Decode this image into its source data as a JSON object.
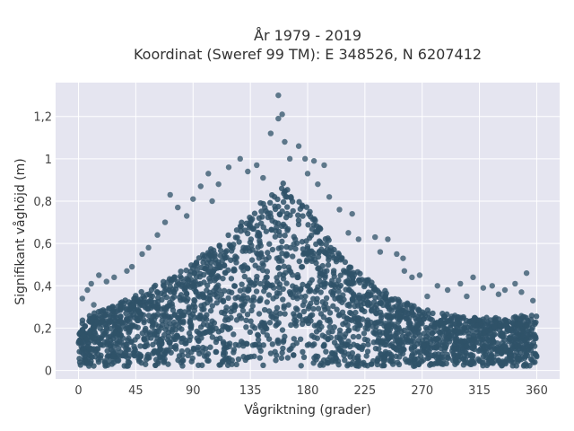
{
  "chart_data": {
    "type": "scatter",
    "title_lines": [
      "År 1979 - 2019",
      "Koordinat (Sweref 99 TM): E 348526, N 6207412"
    ],
    "xlabel": "Vågriktning (grader)",
    "ylabel": "Signifikant våghöjd (m)",
    "xlim": [
      -18,
      378
    ],
    "ylim": [
      -0.04,
      1.36
    ],
    "x_ticks": [
      0,
      45,
      90,
      135,
      180,
      225,
      270,
      315,
      360
    ],
    "y_ticks": [
      0,
      0.2,
      0.4,
      0.6,
      0.8,
      1,
      1.2
    ],
    "y_tick_labels": [
      "0",
      "0,2",
      "0,4",
      "0,6",
      "0,8",
      "1",
      "1,2"
    ],
    "grid": true,
    "marker_color": "#2f5268",
    "background_color": "#e5e5f0",
    "envelope": {
      "x": [
        0,
        20,
        45,
        70,
        90,
        110,
        130,
        150,
        160,
        175,
        190,
        210,
        225,
        245,
        265,
        285,
        310,
        335,
        360
      ],
      "upper": [
        0.24,
        0.29,
        0.36,
        0.43,
        0.51,
        0.61,
        0.72,
        0.83,
        0.89,
        0.82,
        0.67,
        0.52,
        0.44,
        0.36,
        0.3,
        0.27,
        0.25,
        0.25,
        0.27
      ]
    },
    "outliers": [
      {
        "x": 157,
        "y": 1.3
      },
      {
        "x": 160,
        "y": 1.21
      },
      {
        "x": 157,
        "y": 1.19
      },
      {
        "x": 151,
        "y": 1.12
      },
      {
        "x": 162,
        "y": 1.08
      },
      {
        "x": 173,
        "y": 1.06
      },
      {
        "x": 127,
        "y": 1.0
      },
      {
        "x": 178,
        "y": 1.0
      },
      {
        "x": 185,
        "y": 0.99
      },
      {
        "x": 193,
        "y": 0.97
      },
      {
        "x": 118,
        "y": 0.96
      },
      {
        "x": 102,
        "y": 0.93
      },
      {
        "x": 133,
        "y": 0.94
      },
      {
        "x": 96,
        "y": 0.87
      },
      {
        "x": 72,
        "y": 0.83
      },
      {
        "x": 90,
        "y": 0.81
      },
      {
        "x": 85,
        "y": 0.73
      },
      {
        "x": 78,
        "y": 0.77
      },
      {
        "x": 68,
        "y": 0.7
      },
      {
        "x": 205,
        "y": 0.76
      },
      {
        "x": 215,
        "y": 0.74
      },
      {
        "x": 197,
        "y": 0.82
      },
      {
        "x": 212,
        "y": 0.65
      },
      {
        "x": 220,
        "y": 0.62
      },
      {
        "x": 233,
        "y": 0.63
      },
      {
        "x": 243,
        "y": 0.62
      },
      {
        "x": 250,
        "y": 0.55
      },
      {
        "x": 255,
        "y": 0.53
      },
      {
        "x": 62,
        "y": 0.64
      },
      {
        "x": 55,
        "y": 0.58
      },
      {
        "x": 50,
        "y": 0.55
      },
      {
        "x": 42,
        "y": 0.49
      },
      {
        "x": 38,
        "y": 0.47
      },
      {
        "x": 28,
        "y": 0.44
      },
      {
        "x": 22,
        "y": 0.42
      },
      {
        "x": 16,
        "y": 0.45
      },
      {
        "x": 10,
        "y": 0.41
      },
      {
        "x": 7,
        "y": 0.38
      },
      {
        "x": 3,
        "y": 0.34
      },
      {
        "x": 12,
        "y": 0.31
      },
      {
        "x": 268,
        "y": 0.45
      },
      {
        "x": 282,
        "y": 0.4
      },
      {
        "x": 290,
        "y": 0.38
      },
      {
        "x": 300,
        "y": 0.41
      },
      {
        "x": 310,
        "y": 0.44
      },
      {
        "x": 318,
        "y": 0.39
      },
      {
        "x": 325,
        "y": 0.4
      },
      {
        "x": 335,
        "y": 0.38
      },
      {
        "x": 343,
        "y": 0.41
      },
      {
        "x": 348,
        "y": 0.37
      },
      {
        "x": 352,
        "y": 0.46
      },
      {
        "x": 357,
        "y": 0.33
      },
      {
        "x": 330,
        "y": 0.36
      },
      {
        "x": 305,
        "y": 0.35
      },
      {
        "x": 274,
        "y": 0.35
      },
      {
        "x": 262,
        "y": 0.44
      },
      {
        "x": 256,
        "y": 0.47
      },
      {
        "x": 237,
        "y": 0.56
      },
      {
        "x": 140,
        "y": 0.97
      },
      {
        "x": 145,
        "y": 0.91
      },
      {
        "x": 166,
        "y": 1.0
      },
      {
        "x": 180,
        "y": 0.93
      },
      {
        "x": 188,
        "y": 0.88
      },
      {
        "x": 110,
        "y": 0.88
      },
      {
        "x": 105,
        "y": 0.8
      }
    ]
  }
}
